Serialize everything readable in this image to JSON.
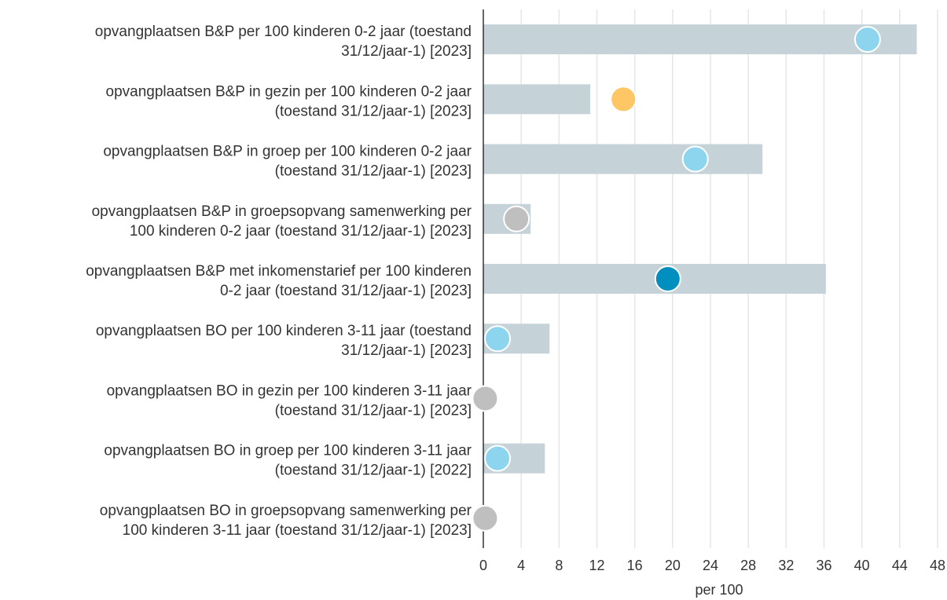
{
  "chart_data": {
    "type": "bar",
    "orientation": "horizontal",
    "xlabel": "per 100",
    "xlim": [
      0,
      48
    ],
    "xticks": [
      "0",
      "4",
      "8",
      "12",
      "16",
      "20",
      "24",
      "28",
      "32",
      "36",
      "40",
      "44",
      "48"
    ],
    "grid": "vertical",
    "categories": [
      [
        "opvangplaatsen B&P per 100 kinderen 0-2 jaar (toestand",
        "31/12/jaar-1) [2023]"
      ],
      [
        "opvangplaatsen B&P in gezin per 100 kinderen 0-2 jaar",
        "(toestand 31/12/jaar-1) [2023]"
      ],
      [
        "opvangplaatsen B&P in groep per 100 kinderen 0-2 jaar",
        "(toestand 31/12/jaar-1) [2023]"
      ],
      [
        "opvangplaatsen B&P in groepsopvang samenwerking per",
        "100 kinderen 0-2 jaar (toestand 31/12/jaar-1) [2023]"
      ],
      [
        "opvangplaatsen B&P met inkomenstarief per 100 kinderen",
        "0-2 jaar (toestand 31/12/jaar-1) [2023]"
      ],
      [
        "opvangplaatsen BO per 100 kinderen 3-11 jaar (toestand",
        "31/12/jaar-1) [2023]"
      ],
      [
        "opvangplaatsen BO in gezin per 100 kinderen 3-11 jaar",
        "(toestand 31/12/jaar-1) [2023]"
      ],
      [
        "opvangplaatsen BO in groep per 100 kinderen 3-11 jaar",
        "(toestand 31/12/jaar-1) [2022]"
      ],
      [
        "opvangplaatsen BO in groepsopvang samenwerking per",
        "100 kinderen 3-11 jaar (toestand 31/12/jaar-1) [2023]"
      ]
    ],
    "bar_values": [
      45.8,
      11.3,
      29.5,
      5.0,
      36.2,
      7.0,
      0,
      6.5,
      0
    ],
    "point_values": [
      40.6,
      14.8,
      22.4,
      3.5,
      19.5,
      1.5,
      0.2,
      1.5,
      0.2
    ],
    "point_colors": [
      "#8dd5ee",
      "#fec665",
      "#8dd5ee",
      "#bfbfbf",
      "#008fbf",
      "#8dd5ee",
      "#bfbfbf",
      "#8dd5ee",
      "#bfbfbf"
    ],
    "colors": {
      "bar": "#c5d3d9",
      "grid": "#e6e6e6",
      "axis": "#333333",
      "text": "#333333"
    }
  }
}
